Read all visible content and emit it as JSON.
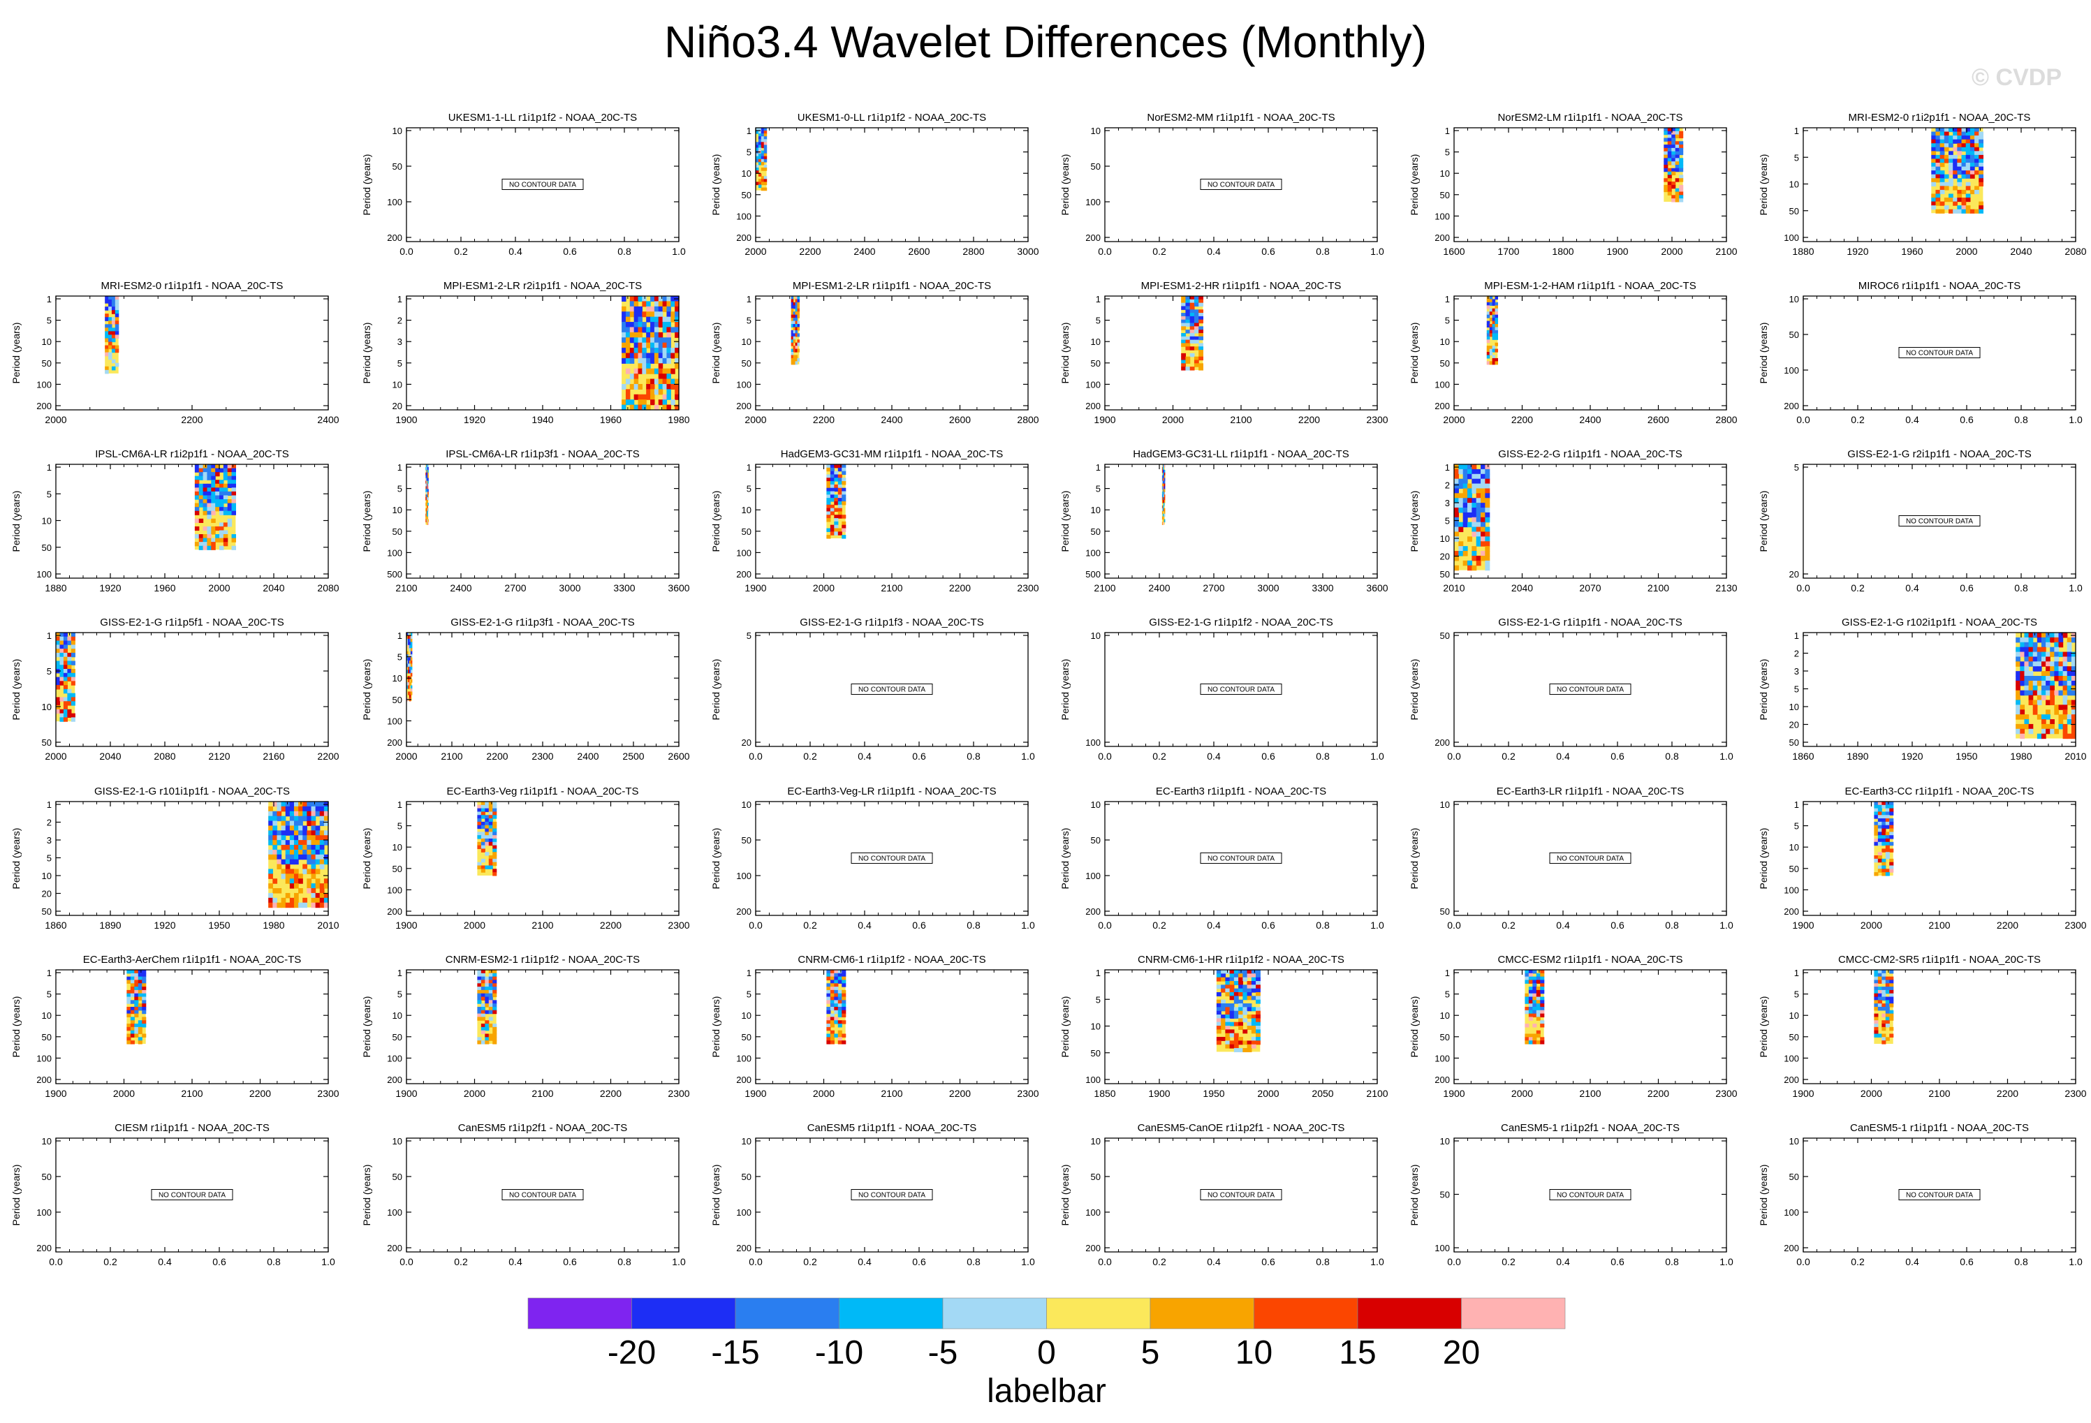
{
  "title": "Niño3.4 Wavelet Differences (Monthly)",
  "copyright": "© CVDP",
  "no_data_label": "NO CONTOUR DATA",
  "ylabel": "Period (years)",
  "colors": [
    "#7f24f0",
    "#1d2ef5",
    "#2a7ef0",
    "#00b9f7",
    "#a3d9f5",
    "#fbe85b",
    "#f8a400",
    "#fb4600",
    "#d80000",
    "#ffb2b2"
  ],
  "chart_data": {
    "type": "heatmap",
    "colorbar": {
      "label": "labelbar",
      "ticks": [
        "-20",
        "-15",
        "-10",
        "-5",
        "0",
        "5",
        "10",
        "15",
        "20"
      ],
      "levels": [
        -20,
        -15,
        -10,
        -5,
        0,
        5,
        10,
        15,
        20
      ]
    },
    "panels": [
      {
        "row": 0,
        "col": 1,
        "title": "UKESM1-1-LL r1i1p1f2 - NOAA_20C-TS",
        "nodata": true,
        "xticks": [
          "0.0",
          "0.2",
          "0.4",
          "0.6",
          "0.8",
          "1.0"
        ],
        "yticks": [
          "10",
          "50",
          "100",
          "200"
        ]
      },
      {
        "row": 0,
        "col": 2,
        "title": "UKESM1-0-LL r1i1p1f2 - NOAA_20C-TS",
        "xticks": [
          "2000",
          "2200",
          "2400",
          "2600",
          "2800",
          "3000"
        ],
        "yticks": [
          "1",
          "5",
          "10",
          "50",
          "100",
          "200"
        ],
        "data_span": [
          0.0,
          0.04
        ],
        "fill": [
          0.0,
          0.55
        ]
      },
      {
        "row": 0,
        "col": 3,
        "title": "NorESM2-MM r1i1p1f1 - NOAA_20C-TS",
        "nodata": true,
        "xticks": [
          "0.0",
          "0.2",
          "0.4",
          "0.6",
          "0.8",
          "1.0"
        ],
        "yticks": [
          "10",
          "50",
          "100",
          "200"
        ]
      },
      {
        "row": 0,
        "col": 4,
        "title": "NorESM2-LM r1i1p1f1 - NOAA_20C-TS",
        "xticks": [
          "1600",
          "1700",
          "1800",
          "1900",
          "2000",
          "2100"
        ],
        "yticks": [
          "1",
          "5",
          "10",
          "50",
          "100",
          "200"
        ],
        "data_span": [
          0.77,
          0.84
        ],
        "fill": [
          0.0,
          0.65
        ]
      },
      {
        "row": 0,
        "col": 5,
        "title": "MRI-ESM2-0 r1i2p1f1 - NOAA_20C-TS",
        "xticks": [
          "1880",
          "1920",
          "1960",
          "2000",
          "2040",
          "2080"
        ],
        "yticks": [
          "1",
          "5",
          "10",
          "50",
          "100"
        ],
        "data_span": [
          0.47,
          0.66
        ],
        "fill": [
          0.0,
          0.75
        ]
      },
      {
        "row": 1,
        "col": 0,
        "title": "MRI-ESM2-0 r1i1p1f1 - NOAA_20C-TS",
        "xticks": [
          "2000",
          "2200",
          "2400"
        ],
        "yticks": [
          "1",
          "5",
          "10",
          "50",
          "100",
          "200"
        ],
        "data_span": [
          0.18,
          0.23
        ],
        "fill": [
          0.0,
          0.68
        ]
      },
      {
        "row": 1,
        "col": 1,
        "title": "MPI-ESM1-2-LR r2i1p1f1 - NOAA_20C-TS",
        "xticks": [
          "1900",
          "1920",
          "1940",
          "1960",
          "1980"
        ],
        "yticks": [
          "1",
          "2",
          "3",
          "5",
          "10",
          "20"
        ],
        "data_span": [
          0.79,
          1.0
        ],
        "fill": [
          0.0,
          1.0
        ]
      },
      {
        "row": 1,
        "col": 2,
        "title": "MPI-ESM1-2-LR r1i1p1f1 - NOAA_20C-TS",
        "xticks": [
          "2000",
          "2200",
          "2400",
          "2600",
          "2800"
        ],
        "yticks": [
          "1",
          "5",
          "10",
          "50",
          "100",
          "200"
        ],
        "data_span": [
          0.13,
          0.16
        ],
        "fill": [
          0.0,
          0.6
        ]
      },
      {
        "row": 1,
        "col": 3,
        "title": "MPI-ESM1-2-HR r1i1p1f1 - NOAA_20C-TS",
        "xticks": [
          "1900",
          "2000",
          "2100",
          "2200",
          "2300"
        ],
        "yticks": [
          "1",
          "5",
          "10",
          "50",
          "100",
          "200"
        ],
        "data_span": [
          0.28,
          0.36
        ],
        "fill": [
          0.0,
          0.65
        ]
      },
      {
        "row": 1,
        "col": 4,
        "title": "MPI-ESM-1-2-HAM r1i1p1f1 - NOAA_20C-TS",
        "xticks": [
          "2000",
          "2200",
          "2400",
          "2600",
          "2800"
        ],
        "yticks": [
          "1",
          "5",
          "10",
          "50",
          "100",
          "200"
        ],
        "data_span": [
          0.12,
          0.16
        ],
        "fill": [
          0.0,
          0.6
        ]
      },
      {
        "row": 1,
        "col": 5,
        "title": "MIROC6 r1i1p1f1 - NOAA_20C-TS",
        "nodata": true,
        "xticks": [
          "0.0",
          "0.2",
          "0.4",
          "0.6",
          "0.8",
          "1.0"
        ],
        "yticks": [
          "10",
          "50",
          "100",
          "200"
        ]
      },
      {
        "row": 2,
        "col": 0,
        "title": "IPSL-CM6A-LR r1i2p1f1 - NOAA_20C-TS",
        "xticks": [
          "1880",
          "1920",
          "1960",
          "2000",
          "2040",
          "2080"
        ],
        "yticks": [
          "1",
          "5",
          "10",
          "50",
          "100"
        ],
        "data_span": [
          0.51,
          0.66
        ],
        "fill": [
          0.0,
          0.75
        ]
      },
      {
        "row": 2,
        "col": 1,
        "title": "IPSL-CM6A-LR r1i1p3f1 - NOAA_20C-TS",
        "xticks": [
          "2100",
          "2400",
          "2700",
          "3000",
          "3300",
          "3600"
        ],
        "yticks": [
          "1",
          "5",
          "10",
          "50",
          "100",
          "500"
        ],
        "data_span": [
          0.07,
          0.08
        ],
        "fill": [
          0.0,
          0.53
        ]
      },
      {
        "row": 2,
        "col": 2,
        "title": "HadGEM3-GC31-MM r1i1p1f1 - NOAA_20C-TS",
        "xticks": [
          "1900",
          "2000",
          "2100",
          "2200",
          "2300"
        ],
        "yticks": [
          "1",
          "5",
          "10",
          "50",
          "100",
          "200"
        ],
        "data_span": [
          0.26,
          0.33
        ],
        "fill": [
          0.0,
          0.65
        ]
      },
      {
        "row": 2,
        "col": 3,
        "title": "HadGEM3-GC31-LL r1i1p1f1 - NOAA_20C-TS",
        "xticks": [
          "2100",
          "2400",
          "2700",
          "3000",
          "3300",
          "3600"
        ],
        "yticks": [
          "1",
          "5",
          "10",
          "50",
          "100",
          "500"
        ],
        "data_span": [
          0.21,
          0.22
        ],
        "fill": [
          0.0,
          0.53
        ]
      },
      {
        "row": 2,
        "col": 4,
        "title": "GISS-E2-2-G r1i1p1f1 - NOAA_20C-TS",
        "xticks": [
          "2010",
          "2040",
          "2070",
          "2100",
          "2130"
        ],
        "yticks": [
          "1",
          "2",
          "3",
          "5",
          "10",
          "20",
          "50"
        ],
        "data_span": [
          0.0,
          0.13
        ],
        "fill": [
          0.0,
          0.93
        ]
      },
      {
        "row": 2,
        "col": 5,
        "title": "GISS-E2-1-G r2i1p1f1 - NOAA_20C-TS",
        "nodata": true,
        "xticks": [
          "0.0",
          "0.2",
          "0.4",
          "0.6",
          "0.8",
          "1.0"
        ],
        "yticks": [
          "5",
          "20"
        ]
      },
      {
        "row": 3,
        "col": 0,
        "title": "GISS-E2-1-G r1i1p5f1 - NOAA_20C-TS",
        "xticks": [
          "2000",
          "2040",
          "2080",
          "2120",
          "2160",
          "2200"
        ],
        "yticks": [
          "1",
          "5",
          "10",
          "50"
        ],
        "data_span": [
          0.0,
          0.07
        ],
        "fill": [
          0.0,
          0.78
        ]
      },
      {
        "row": 3,
        "col": 1,
        "title": "GISS-E2-1-G r1i1p3f1 - NOAA_20C-TS",
        "xticks": [
          "2000",
          "2100",
          "2200",
          "2300",
          "2400",
          "2500",
          "2600"
        ],
        "yticks": [
          "1",
          "5",
          "10",
          "50",
          "100",
          "200"
        ],
        "data_span": [
          0.0,
          0.02
        ],
        "fill": [
          0.0,
          0.6
        ]
      },
      {
        "row": 3,
        "col": 2,
        "title": "GISS-E2-1-G r1i1p1f3 - NOAA_20C-TS",
        "nodata": true,
        "xticks": [
          "0.0",
          "0.2",
          "0.4",
          "0.6",
          "0.8",
          "1.0"
        ],
        "yticks": [
          "5",
          "20"
        ]
      },
      {
        "row": 3,
        "col": 3,
        "title": "GISS-E2-1-G r1i1p1f2 - NOAA_20C-TS",
        "nodata": true,
        "xticks": [
          "0.0",
          "0.2",
          "0.4",
          "0.6",
          "0.8",
          "1.0"
        ],
        "yticks": [
          "10",
          "100"
        ]
      },
      {
        "row": 3,
        "col": 4,
        "title": "GISS-E2-1-G r1i1p1f1 - NOAA_20C-TS",
        "nodata": true,
        "xticks": [
          "0.0",
          "0.2",
          "0.4",
          "0.6",
          "0.8",
          "1.0"
        ],
        "yticks": [
          "50",
          "200"
        ]
      },
      {
        "row": 3,
        "col": 5,
        "title": "GISS-E2-1-G r102i1p1f1 - NOAA_20C-TS",
        "xticks": [
          "1860",
          "1890",
          "1920",
          "1950",
          "1980",
          "2010"
        ],
        "yticks": [
          "1",
          "2",
          "3",
          "5",
          "10",
          "20",
          "50"
        ],
        "data_span": [
          0.78,
          1.0
        ],
        "fill": [
          0.0,
          0.93
        ]
      },
      {
        "row": 4,
        "col": 0,
        "title": "GISS-E2-1-G r101i1p1f1 - NOAA_20C-TS",
        "xticks": [
          "1860",
          "1890",
          "1920",
          "1950",
          "1980",
          "2010"
        ],
        "yticks": [
          "1",
          "2",
          "3",
          "5",
          "10",
          "20",
          "50"
        ],
        "data_span": [
          0.78,
          1.0
        ],
        "fill": [
          0.0,
          0.93
        ]
      },
      {
        "row": 4,
        "col": 1,
        "title": "EC-Earth3-Veg r1i1p1f1 - NOAA_20C-TS",
        "xticks": [
          "1900",
          "2000",
          "2100",
          "2200",
          "2300"
        ],
        "yticks": [
          "1",
          "5",
          "10",
          "50",
          "100",
          "200"
        ],
        "data_span": [
          0.26,
          0.33
        ],
        "fill": [
          0.0,
          0.65
        ]
      },
      {
        "row": 4,
        "col": 2,
        "title": "EC-Earth3-Veg-LR r1i1p1f1 - NOAA_20C-TS",
        "nodata": true,
        "xticks": [
          "0.0",
          "0.2",
          "0.4",
          "0.6",
          "0.8",
          "1.0"
        ],
        "yticks": [
          "10",
          "50",
          "100",
          "200"
        ]
      },
      {
        "row": 4,
        "col": 3,
        "title": "EC-Earth3 r1i1p1f1 - NOAA_20C-TS",
        "nodata": true,
        "xticks": [
          "0.0",
          "0.2",
          "0.4",
          "0.6",
          "0.8",
          "1.0"
        ],
        "yticks": [
          "10",
          "50",
          "100",
          "200"
        ]
      },
      {
        "row": 4,
        "col": 4,
        "title": "EC-Earth3-LR r1i1p1f1 - NOAA_20C-TS",
        "nodata": true,
        "xticks": [
          "0.0",
          "0.2",
          "0.4",
          "0.6",
          "0.8",
          "1.0"
        ],
        "yticks": [
          "10",
          "50"
        ]
      },
      {
        "row": 4,
        "col": 5,
        "title": "EC-Earth3-CC r1i1p1f1 - NOAA_20C-TS",
        "xticks": [
          "1900",
          "2000",
          "2100",
          "2200",
          "2300"
        ],
        "yticks": [
          "1",
          "5",
          "10",
          "50",
          "100",
          "200"
        ],
        "data_span": [
          0.26,
          0.33
        ],
        "fill": [
          0.0,
          0.65
        ]
      },
      {
        "row": 5,
        "col": 0,
        "title": "EC-Earth3-AerChem r1i1p1f1 - NOAA_20C-TS",
        "xticks": [
          "1900",
          "2000",
          "2100",
          "2200",
          "2300"
        ],
        "yticks": [
          "1",
          "5",
          "10",
          "50",
          "100",
          "200"
        ],
        "data_span": [
          0.26,
          0.33
        ],
        "fill": [
          0.0,
          0.65
        ]
      },
      {
        "row": 5,
        "col": 1,
        "title": "CNRM-ESM2-1 r1i1p1f2 - NOAA_20C-TS",
        "xticks": [
          "1900",
          "2000",
          "2100",
          "2200",
          "2300"
        ],
        "yticks": [
          "1",
          "5",
          "10",
          "50",
          "100",
          "200"
        ],
        "data_span": [
          0.26,
          0.33
        ],
        "fill": [
          0.0,
          0.65
        ]
      },
      {
        "row": 5,
        "col": 2,
        "title": "CNRM-CM6-1 r1i1p1f2 - NOAA_20C-TS",
        "xticks": [
          "1900",
          "2000",
          "2100",
          "2200",
          "2300"
        ],
        "yticks": [
          "1",
          "5",
          "10",
          "50",
          "100",
          "200"
        ],
        "data_span": [
          0.26,
          0.33
        ],
        "fill": [
          0.0,
          0.65
        ]
      },
      {
        "row": 5,
        "col": 3,
        "title": "CNRM-CM6-1-HR r1i1p1f2 - NOAA_20C-TS",
        "xticks": [
          "1850",
          "1900",
          "1950",
          "2000",
          "2050",
          "2100"
        ],
        "yticks": [
          "1",
          "5",
          "10",
          "50",
          "100"
        ],
        "data_span": [
          0.41,
          0.57
        ],
        "fill": [
          0.0,
          0.72
        ]
      },
      {
        "row": 5,
        "col": 4,
        "title": "CMCC-ESM2 r1i1p1f1 - NOAA_20C-TS",
        "xticks": [
          "1900",
          "2000",
          "2100",
          "2200",
          "2300"
        ],
        "yticks": [
          "1",
          "5",
          "10",
          "50",
          "100",
          "200"
        ],
        "data_span": [
          0.26,
          0.33
        ],
        "fill": [
          0.0,
          0.65
        ]
      },
      {
        "row": 5,
        "col": 5,
        "title": "CMCC-CM2-SR5 r1i1p1f1 - NOAA_20C-TS",
        "xticks": [
          "1900",
          "2000",
          "2100",
          "2200",
          "2300"
        ],
        "yticks": [
          "1",
          "5",
          "10",
          "50",
          "100",
          "200"
        ],
        "data_span": [
          0.26,
          0.33
        ],
        "fill": [
          0.0,
          0.65
        ]
      },
      {
        "row": 6,
        "col": 0,
        "title": "CIESM r1i1p1f1 - NOAA_20C-TS",
        "nodata": true,
        "xticks": [
          "0.0",
          "0.2",
          "0.4",
          "0.6",
          "0.8",
          "1.0"
        ],
        "yticks": [
          "10",
          "50",
          "100",
          "200"
        ]
      },
      {
        "row": 6,
        "col": 1,
        "title": "CanESM5 r1i1p2f1 - NOAA_20C-TS",
        "nodata": true,
        "xticks": [
          "0.0",
          "0.2",
          "0.4",
          "0.6",
          "0.8",
          "1.0"
        ],
        "yticks": [
          "10",
          "50",
          "100",
          "200"
        ]
      },
      {
        "row": 6,
        "col": 2,
        "title": "CanESM5 r1i1p1f1 - NOAA_20C-TS",
        "nodata": true,
        "xticks": [
          "0.0",
          "0.2",
          "0.4",
          "0.6",
          "0.8",
          "1.0"
        ],
        "yticks": [
          "10",
          "50",
          "100",
          "200"
        ]
      },
      {
        "row": 6,
        "col": 3,
        "title": "CanESM5-CanOE r1i1p2f1 - NOAA_20C-TS",
        "nodata": true,
        "xticks": [
          "0.0",
          "0.2",
          "0.4",
          "0.6",
          "0.8",
          "1.0"
        ],
        "yticks": [
          "10",
          "50",
          "100",
          "200"
        ]
      },
      {
        "row": 6,
        "col": 4,
        "title": "CanESM5-1 r1i1p2f1 - NOAA_20C-TS",
        "nodata": true,
        "xticks": [
          "0.0",
          "0.2",
          "0.4",
          "0.6",
          "0.8",
          "1.0"
        ],
        "yticks": [
          "10",
          "50",
          "100"
        ]
      },
      {
        "row": 6,
        "col": 5,
        "title": "CanESM5-1 r1i1p1f1 - NOAA_20C-TS",
        "nodata": true,
        "xticks": [
          "0.0",
          "0.2",
          "0.4",
          "0.6",
          "0.8",
          "1.0"
        ],
        "yticks": [
          "10",
          "50",
          "100",
          "200"
        ]
      }
    ]
  }
}
